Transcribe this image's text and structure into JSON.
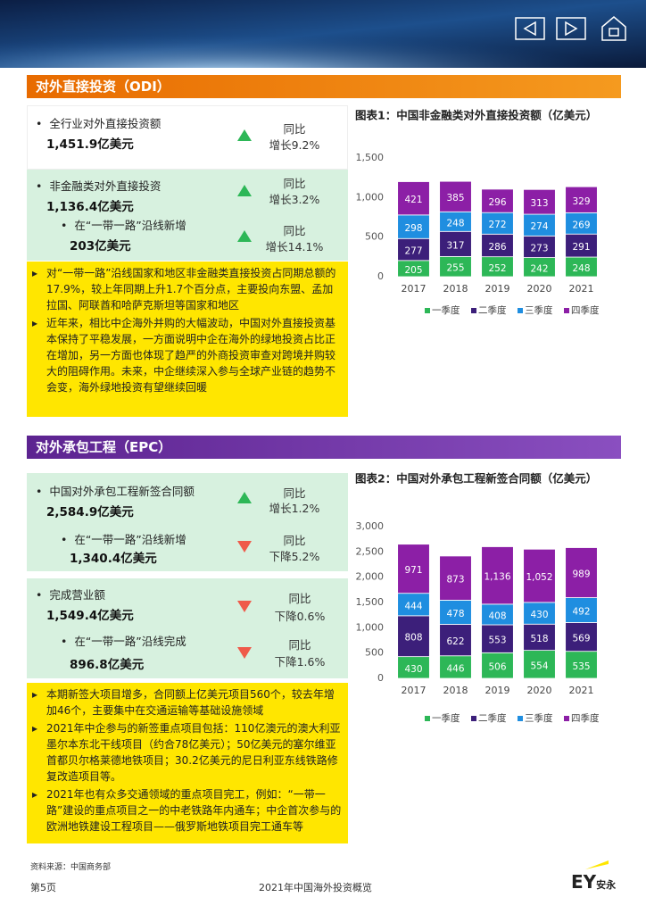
{
  "odi": {
    "title": "对外直接投资（ODI）",
    "stats": [
      {
        "label": "全行业对外直接投资额",
        "value": "1,451.9亿美元",
        "compare": "同比",
        "change": "增长9.2%"
      },
      {
        "label": "非金融类对外直接投资",
        "value": "1,136.4亿美元",
        "compare": "同比",
        "change": "增长3.2%"
      },
      {
        "label": "在“一带一路”沿线新增",
        "value": "203亿美元",
        "compare": "同比",
        "change": "增长14.1%"
      }
    ],
    "notes": [
      "对“一带一路”沿线国家和地区非金融类直接投资占同期总额的17.9%，较上年同期上升1.7个百分点，主要投向东盟、孟加拉国、阿联酋和哈萨克斯坦等国家和地区",
      "近年来，相比中企海外并购的大幅波动，中国对外直接投资基本保持了平稳发展，一方面说明中企在海外的绿地投资占比正在增加，另一方面也体现了趋严的外商投资审查对跨境并购较大的阻碍作用。未来，中企继续深入参与全球产业链的趋势不会变，海外绿地投资有望继续回暖"
    ]
  },
  "epc": {
    "title": "对外承包工程（EPC）",
    "stats": [
      {
        "label": "中国对外承包工程新签合同额",
        "value": "2,584.9亿美元",
        "compare": "同比",
        "change": "增长1.2%"
      },
      {
        "label": "在“一带一路”沿线新增",
        "value": "1,340.4亿美元",
        "compare": "同比",
        "change": "下降5.2%"
      },
      {
        "label": "完成营业额",
        "value": "1,549.4亿美元",
        "compare": "同比",
        "change": "下降0.6%"
      },
      {
        "label": "在“一带一路”沿线完成",
        "value": "896.8亿美元",
        "compare": "同比",
        "change": "下降1.6%"
      }
    ],
    "notes": [
      "本期新签大项目增多，合同额上亿美元项目560个，较去年增加46个，主要集中在交通运输等基础设施领域",
      "2021年中企参与的新签重点项目包括：110亿澳元的澳大利亚墨尔本东北干线项目（约合78亿美元）；50亿美元的塞尔维亚首都贝尔格莱德地铁项目；30.2亿美元的尼日利亚东线铁路修复改造项目等。",
      "2021年也有众多交通领域的重点项目完工，例如：“一带一路”建设的重点项目之一的中老铁路年内通车；中企首次参与的欧洲地铁建设工程项目——俄罗斯地铁项目完工通车等"
    ]
  },
  "chart_data": [
    {
      "type": "stacked_bar",
      "title": "图表1：中国非金融类对外直接投资额（亿美元）",
      "categories": [
        "2017",
        "2018",
        "2019",
        "2020",
        "2021"
      ],
      "series": [
        {
          "name": "一季度",
          "color": "#2db757",
          "values": [
            205,
            255,
            252,
            242,
            248
          ]
        },
        {
          "name": "二季度",
          "color": "#3c1f7a",
          "values": [
            277,
            317,
            286,
            273,
            291
          ]
        },
        {
          "name": "三季度",
          "color": "#1f8ee0",
          "values": [
            298,
            248,
            272,
            274,
            269
          ]
        },
        {
          "name": "四季度",
          "color": "#8c1fa6",
          "values": [
            421,
            385,
            296,
            313,
            329
          ]
        }
      ],
      "ylim": [
        0,
        1500
      ],
      "yticks": [
        0,
        500,
        {
          "value": 1000,
          "label": "1,000"
        },
        {
          "value": 1500,
          "label": "1,500"
        }
      ]
    },
    {
      "type": "stacked_bar",
      "title": "图表2：中国对外承包工程新签合同额（亿美元）",
      "categories": [
        "2017",
        "2018",
        "2019",
        "2020",
        "2021"
      ],
      "series": [
        {
          "name": "一季度",
          "color": "#2db757",
          "values": [
            430,
            446,
            506,
            554,
            535
          ]
        },
        {
          "name": "二季度",
          "color": "#3c1f7a",
          "values": [
            808,
            622,
            553,
            518,
            569
          ]
        },
        {
          "name": "三季度",
          "color": "#1f8ee0",
          "values": [
            444,
            478,
            408,
            430,
            492
          ]
        },
        {
          "name": "四季度",
          "color": "#8c1fa6",
          "values": [
            971,
            873,
            1136,
            1052,
            989
          ],
          "value_labels": [
            "971",
            "873",
            "1,136",
            "1,052",
            "989"
          ]
        }
      ],
      "ylim": [
        0,
        3000
      ],
      "yticks": [
        0,
        500,
        {
          "value": 1000,
          "label": "1,000"
        },
        {
          "value": 1500,
          "label": "1,500"
        },
        {
          "value": 2000,
          "label": "2,000"
        },
        {
          "value": 2500,
          "label": "2,500"
        },
        {
          "value": 3000,
          "label": "3,000"
        }
      ]
    }
  ],
  "footer": {
    "source": "资料来源：中国商务部",
    "page": "第5页",
    "report": "2021年中国海外投资概览",
    "logo": "EY",
    "logo_cn": "安永"
  }
}
